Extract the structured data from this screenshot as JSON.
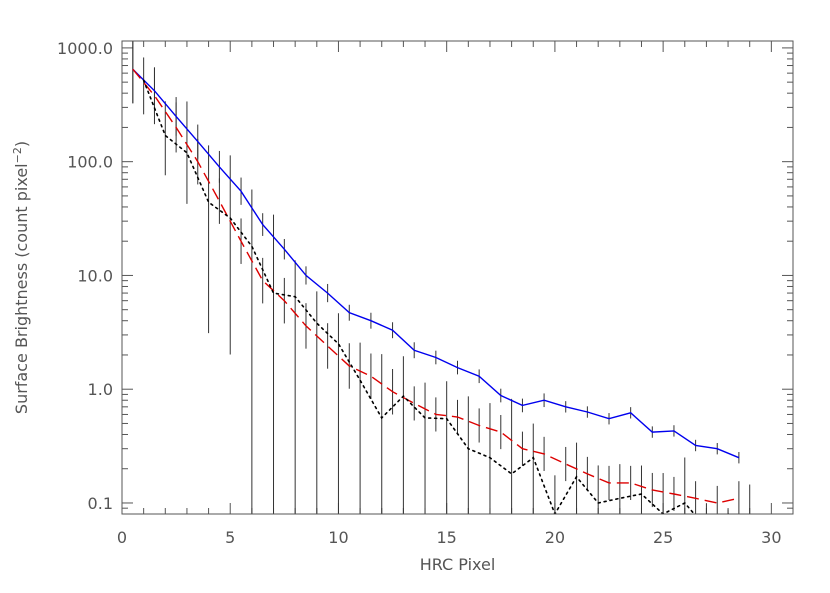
{
  "chart_data": {
    "type": "line",
    "xlabel": "HRC Pixel",
    "ylabel": {
      "main": "Surface Brightness (count pixel",
      "sup": "−2",
      "close": ")"
    },
    "xlim": [
      0,
      31
    ],
    "ylim": [
      0.08,
      1150
    ],
    "yscale": "log",
    "grid": false,
    "xticks": {
      "values": [
        0,
        5,
        10,
        15,
        20,
        25,
        30
      ],
      "labels": [
        "0",
        "5",
        "10",
        "15",
        "20",
        "25",
        "30"
      ]
    },
    "yticks": {
      "values": [
        0.1,
        1,
        10,
        100,
        1000
      ],
      "labels": [
        "0.1",
        "1.0",
        "10.0",
        "100.0",
        "1000.0"
      ]
    },
    "series": [
      {
        "line_style": "solid",
        "color": "#0000ee",
        "x": [
          0.5,
          1.5,
          2.5,
          3.5,
          4.5,
          5.5,
          6.5,
          7.5,
          8.5,
          9.5,
          10.5,
          11.5,
          12.5,
          13.5,
          14.5,
          15.5,
          16.5,
          17.5,
          18.5,
          19.5,
          20.5,
          21.5,
          22.5,
          23.5,
          24.5,
          25.5,
          26.5,
          27.5,
          28.5
        ],
        "y": [
          650,
          420,
          250,
          150,
          90,
          55,
          28,
          17,
          10,
          7,
          4.7,
          4,
          3.3,
          2.2,
          1.9,
          1.55,
          1.3,
          0.88,
          0.72,
          0.8,
          0.7,
          0.63,
          0.55,
          0.62,
          0.42,
          0.43,
          0.32,
          0.3,
          0.25
        ],
        "error_low": [
          0.3,
          0.2,
          0.17,
          0.15,
          0.14,
          0.12,
          0.1,
          0.09,
          0.08,
          0.08,
          0.07,
          0.07,
          0.07,
          0.07,
          0.06,
          0.06,
          0.06,
          0.06,
          0.06,
          0.06,
          0.05,
          0.05,
          0.05,
          0.05,
          0.05,
          0.05,
          0.05,
          0.05,
          0.05
        ],
        "error_high": [
          0.3,
          0.2,
          0.17,
          0.15,
          0.14,
          0.12,
          0.1,
          0.09,
          0.08,
          0.08,
          0.07,
          0.07,
          0.07,
          0.07,
          0.06,
          0.06,
          0.06,
          0.06,
          0.06,
          0.06,
          0.05,
          0.05,
          0.05,
          0.05,
          0.05,
          0.05,
          0.05,
          0.05,
          0.05
        ]
      },
      {
        "line_style": "dashed",
        "color": "#dd0000",
        "x": [
          0.5,
          1.5,
          2.5,
          3.5,
          4.5,
          5.5,
          6.5,
          7.5,
          8.5,
          9.5,
          10.5,
          11.5,
          12.5,
          13.5,
          14.5,
          15.5,
          16.5,
          17.5,
          18.5,
          19.5,
          20.5,
          21.5,
          22.5,
          23.5,
          24.5,
          25.5,
          26.5,
          27.5,
          28.5
        ],
        "y": [
          650,
          380,
          200,
          100,
          45,
          20,
          9,
          6,
          3.6,
          2.4,
          1.6,
          1.3,
          0.95,
          0.75,
          0.6,
          0.57,
          0.48,
          0.42,
          0.3,
          0.27,
          0.22,
          0.18,
          0.15,
          0.15,
          0.13,
          0.12,
          0.11,
          0.1,
          0.11
        ],
        "error_low": [
          0.3,
          0.25,
          0.22,
          0.2,
          0.2,
          0.2,
          0.2,
          0.2,
          0.2,
          0.2,
          0.2,
          0.2,
          0.2,
          0.15,
          0.15,
          0.15,
          0.15,
          0.15,
          0.15,
          0.15,
          0.15,
          0.15,
          0.15,
          0.15,
          0.15,
          0.15,
          0.15,
          0.15,
          0.15
        ],
        "error_high": [
          0.3,
          0.25,
          0.22,
          0.2,
          0.2,
          0.2,
          0.2,
          0.2,
          0.2,
          0.2,
          0.2,
          0.2,
          0.2,
          0.15,
          0.15,
          0.15,
          0.15,
          0.15,
          0.15,
          0.15,
          0.15,
          0.15,
          0.15,
          0.15,
          0.15,
          0.15,
          0.15,
          0.15,
          0.15
        ]
      },
      {
        "line_style": "dotted",
        "color": "#000000",
        "x": [
          1,
          2,
          3,
          4,
          5,
          6,
          7,
          8,
          9,
          10,
          11,
          12,
          13,
          14,
          15,
          16,
          17,
          18,
          19,
          20,
          21,
          22,
          23,
          24,
          25,
          26,
          27,
          28,
          29
        ],
        "y": [
          520,
          170,
          120,
          44,
          32,
          18,
          7,
          6.5,
          3.8,
          2.5,
          1.2,
          0.56,
          0.87,
          0.56,
          0.55,
          0.3,
          0.25,
          0.18,
          0.25,
          0.08,
          0.17,
          0.1,
          0.11,
          0.12,
          0.08,
          0.1,
          0.06,
          0.08,
          0.04
        ],
        "error_low": [
          0.3,
          0.35,
          0.45,
          1.15,
          1.2,
          2.5,
          3.0,
          3.0,
          3.0,
          3.0,
          3.0,
          3.0,
          3.0,
          3.0,
          3.0,
          3.0,
          3.0,
          3.0,
          3.0,
          3.0,
          3.0,
          3.0,
          3.0,
          3.0,
          3.0,
          3.0,
          3.0,
          3.0,
          3.0
        ],
        "error_high": [
          0.2,
          0.3,
          0.45,
          0.5,
          0.55,
          0.5,
          0.69,
          0.32,
          0.28,
          0.27,
          0.33,
          0.56,
          0.35,
          0.31,
          0.33,
          0.46,
          0.48,
          0.66,
          0.3,
          0.34,
          0.3,
          0.33,
          0.3,
          0.25,
          0.36,
          0.4,
          0.22,
          0.04,
          0.56
        ]
      }
    ]
  }
}
